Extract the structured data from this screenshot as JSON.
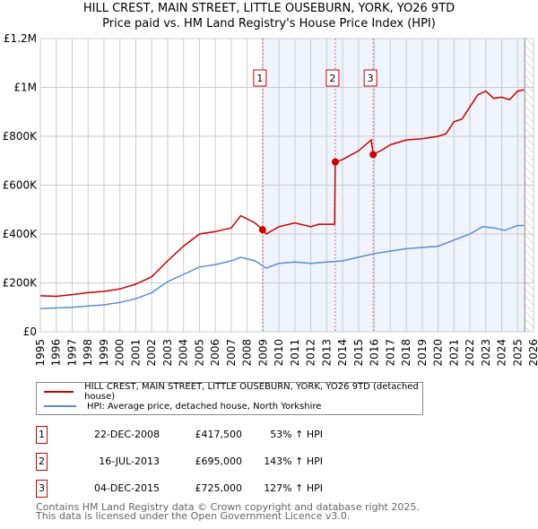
{
  "chart_data": {
    "type": "line",
    "title": "HILL CREST, MAIN STREET, LITTLE OUSEBURN, YORK, YO26 9TD",
    "subtitle": "Price paid vs. HM Land Registry's House Price Index (HPI)",
    "xlim": [
      1995,
      2026
    ],
    "ylim": [
      0,
      1200000
    ],
    "x_ticks": [
      "1995",
      "1996",
      "1997",
      "1998",
      "1999",
      "2000",
      "2001",
      "2002",
      "2003",
      "2004",
      "2005",
      "2006",
      "2007",
      "2008",
      "2009",
      "2010",
      "2011",
      "2012",
      "2013",
      "2014",
      "2015",
      "2016",
      "2017",
      "2018",
      "2019",
      "2020",
      "2021",
      "2022",
      "2023",
      "2024",
      "2025",
      "2026"
    ],
    "y_ticks": [
      {
        "v": 0,
        "label": "£0"
      },
      {
        "v": 200000,
        "label": "£200K"
      },
      {
        "v": 400000,
        "label": "£400K"
      },
      {
        "v": 600000,
        "label": "£600K"
      },
      {
        "v": 800000,
        "label": "£800K"
      },
      {
        "v": 1000000,
        "label": "£1M"
      },
      {
        "v": 1200000,
        "label": "£1.2M"
      }
    ],
    "grid": true,
    "shaded_from": 2008.97,
    "forecast_from": 2025.45,
    "series": [
      {
        "name": "HILL CREST, MAIN STREET, LITTLE OUSEBURN, YORK, YO26 9TD (detached house)",
        "color": "#cc0000",
        "points": [
          [
            1995,
            147
          ],
          [
            1996,
            145
          ],
          [
            1997,
            152
          ],
          [
            1998,
            160
          ],
          [
            1999,
            165
          ],
          [
            2000,
            175
          ],
          [
            2001,
            195
          ],
          [
            2002,
            225
          ],
          [
            2003,
            290
          ],
          [
            2004,
            350
          ],
          [
            2005,
            400
          ],
          [
            2006,
            410
          ],
          [
            2007,
            425
          ],
          [
            2007.6,
            475
          ],
          [
            2008.5,
            445
          ],
          [
            2008.97,
            417.5
          ],
          [
            2009.2,
            400
          ],
          [
            2010,
            430
          ],
          [
            2011,
            445
          ],
          [
            2012,
            430
          ],
          [
            2012.5,
            440
          ],
          [
            2013.5,
            440
          ],
          [
            2013.54,
            695
          ],
          [
            2014,
            705
          ],
          [
            2015,
            740
          ],
          [
            2015.8,
            785
          ],
          [
            2015.92,
            725
          ],
          [
            2016.5,
            745
          ],
          [
            2017,
            765
          ],
          [
            2018,
            785
          ],
          [
            2019,
            790
          ],
          [
            2020,
            800
          ],
          [
            2020.5,
            810
          ],
          [
            2021,
            860
          ],
          [
            2021.5,
            870
          ],
          [
            2022,
            920
          ],
          [
            2022.5,
            970
          ],
          [
            2023,
            985
          ],
          [
            2023.5,
            955
          ],
          [
            2024,
            960
          ],
          [
            2024.5,
            950
          ],
          [
            2025,
            985
          ],
          [
            2025.4,
            990
          ]
        ]
      },
      {
        "name": "HPI: Average price, detached house, North Yorkshire",
        "color": "#5b8fd4",
        "points": [
          [
            1995,
            95
          ],
          [
            1997,
            100
          ],
          [
            1999,
            110
          ],
          [
            2000,
            120
          ],
          [
            2001,
            135
          ],
          [
            2002,
            160
          ],
          [
            2003,
            205
          ],
          [
            2004,
            235
          ],
          [
            2005,
            265
          ],
          [
            2006,
            275
          ],
          [
            2007,
            290
          ],
          [
            2007.6,
            305
          ],
          [
            2008.5,
            290
          ],
          [
            2009.2,
            260
          ],
          [
            2010,
            280
          ],
          [
            2011,
            285
          ],
          [
            2012,
            280
          ],
          [
            2013,
            285
          ],
          [
            2014,
            290
          ],
          [
            2015,
            305
          ],
          [
            2016,
            320
          ],
          [
            2017,
            330
          ],
          [
            2018,
            340
          ],
          [
            2019,
            345
          ],
          [
            2020,
            350
          ],
          [
            2021,
            375
          ],
          [
            2022,
            400
          ],
          [
            2022.8,
            430
          ],
          [
            2023.5,
            425
          ],
          [
            2024.2,
            415
          ],
          [
            2025,
            435
          ],
          [
            2025.4,
            435
          ]
        ]
      }
    ],
    "value_units": "thousands GBP",
    "sales": [
      {
        "num": "1",
        "x": 2008.97,
        "value": 417.5,
        "date": "22-DEC-2008",
        "price": "£417,500",
        "hpi": "53% ↑ HPI"
      },
      {
        "num": "2",
        "x": 2013.54,
        "value": 695,
        "date": "16-JUL-2013",
        "price": "£695,000",
        "hpi": "143% ↑ HPI"
      },
      {
        "num": "3",
        "x": 2015.92,
        "value": 725,
        "date": "04-DEC-2015",
        "price": "£725,000",
        "hpi": "127% ↑ HPI"
      }
    ]
  },
  "footer": {
    "line1": "Contains HM Land Registry data © Crown copyright and database right 2025.",
    "line2": "This data is licensed under the Open Government Licence v3.0."
  }
}
